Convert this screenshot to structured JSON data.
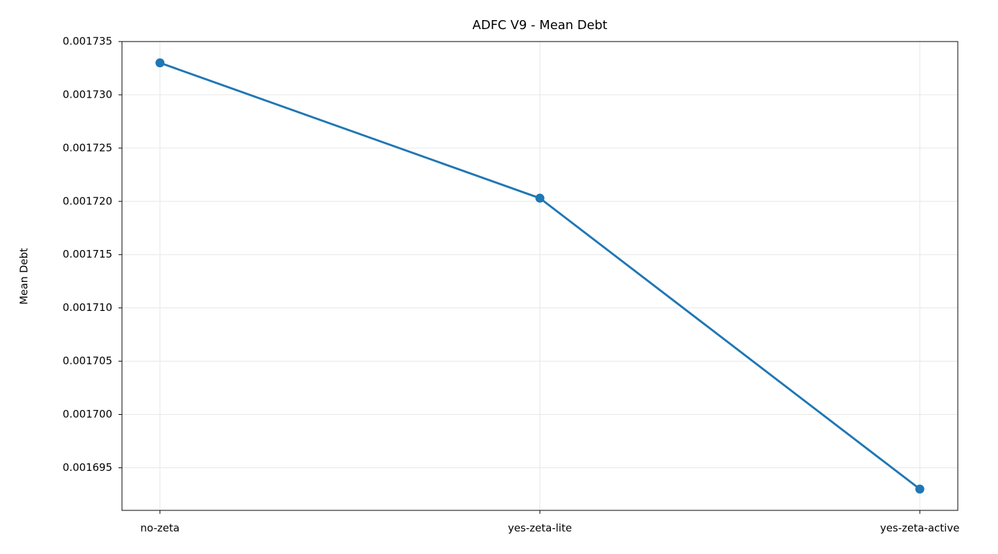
{
  "chart_data": {
    "type": "line",
    "title": "ADFC V9 - Mean Debt",
    "y_label": "Mean Debt",
    "categories": [
      "no-zeta",
      "yes-zeta-lite",
      "yes-zeta-active"
    ],
    "values": [
      0.001733,
      0.0017203,
      0.001693
    ],
    "color": "#1f77b4",
    "ylim": [
      0.001691,
      0.001735
    ],
    "yticks": [
      {
        "value": 0.001695,
        "label": "0.001695"
      },
      {
        "value": 0.0017,
        "label": "0.001700"
      },
      {
        "value": 0.001705,
        "label": "0.001705"
      },
      {
        "value": 0.00171,
        "label": "0.001710"
      },
      {
        "value": 0.001715,
        "label": "0.001715"
      },
      {
        "value": 0.00172,
        "label": "0.001720"
      },
      {
        "value": 0.001725,
        "label": "0.001725"
      },
      {
        "value": 0.00173,
        "label": "0.001730"
      },
      0.001735
    ],
    "grid": true
  }
}
